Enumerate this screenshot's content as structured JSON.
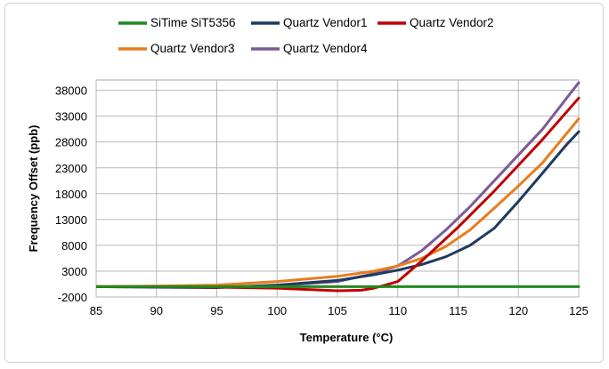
{
  "chart_data": {
    "type": "line",
    "title": "",
    "xlabel": "Temperature (°C)",
    "ylabel": "Frequency Offset (ppb)",
    "xlim": [
      85,
      125
    ],
    "ylim": [
      -2000,
      40000
    ],
    "xticks": [
      85,
      90,
      95,
      100,
      105,
      110,
      115,
      120,
      125
    ],
    "yticks": [
      -2000,
      3000,
      8000,
      13000,
      18000,
      23000,
      28000,
      33000,
      38000
    ],
    "grid": true,
    "legend_position": "top",
    "series": [
      {
        "name": "SiTime SiT5356",
        "color": "#1f8a1f",
        "x": [
          85,
          90,
          95,
          100,
          105,
          110,
          115,
          120,
          125
        ],
        "y": [
          0,
          0,
          0,
          0,
          0,
          0,
          0,
          0,
          0
        ]
      },
      {
        "name": "Quartz Vendor1",
        "color": "#1f3a5f",
        "x": [
          85,
          90,
          95,
          100,
          105,
          108,
          110,
          112,
          114,
          116,
          118,
          120,
          122,
          124,
          125
        ],
        "y": [
          0,
          -100,
          -200,
          300,
          1200,
          2300,
          3200,
          4300,
          5800,
          8000,
          11300,
          16500,
          22000,
          27500,
          30000
        ]
      },
      {
        "name": "Quartz Vendor2",
        "color": "#c00000",
        "x": [
          85,
          90,
          95,
          100,
          103,
          105,
          107,
          108,
          109,
          110,
          112,
          115,
          118,
          120,
          122,
          125
        ],
        "y": [
          0,
          0,
          -100,
          -300,
          -600,
          -800,
          -700,
          -300,
          300,
          1000,
          5000,
          11500,
          18500,
          23500,
          28500,
          36500
        ]
      },
      {
        "name": "Quartz Vendor3",
        "color": "#e87d1e",
        "x": [
          85,
          90,
          95,
          100,
          105,
          108,
          110,
          112,
          114,
          116,
          118,
          120,
          122,
          125
        ],
        "y": [
          0,
          100,
          300,
          1000,
          2000,
          3000,
          4000,
          5500,
          7800,
          11000,
          15200,
          19500,
          24000,
          32500
        ]
      },
      {
        "name": "Quartz Vendor4",
        "color": "#7a5c96",
        "x": [
          85,
          90,
          95,
          100,
          105,
          108,
          110,
          112,
          114,
          116,
          118,
          120,
          122,
          125
        ],
        "y": [
          0,
          0,
          -100,
          200,
          1000,
          2500,
          4000,
          7000,
          11000,
          15500,
          20500,
          25500,
          30500,
          39500
        ]
      }
    ]
  }
}
